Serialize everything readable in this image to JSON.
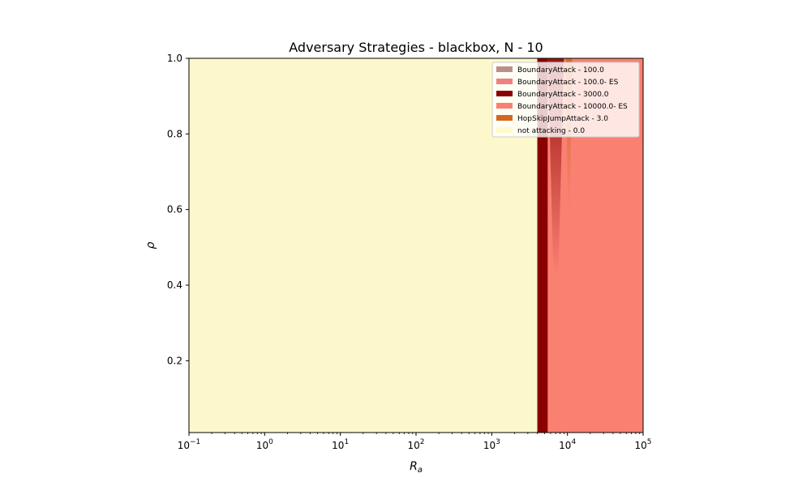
{
  "chart_data": {
    "type": "heatmap",
    "title": "Adversary Strategies - blackbox, N - 10",
    "xlabel": "R",
    "xlabel_sub": "a",
    "ylabel": "ρ",
    "xscale": "log",
    "xlim": [
      0.1,
      100000
    ],
    "ylim": [
      0.01,
      1.0
    ],
    "x_ticks": [
      {
        "value": 0.1,
        "base": "10",
        "exp": "−1"
      },
      {
        "value": 1,
        "base": "10",
        "exp": "0"
      },
      {
        "value": 10,
        "base": "10",
        "exp": "1"
      },
      {
        "value": 100,
        "base": "10",
        "exp": "2"
      },
      {
        "value": 1000,
        "base": "10",
        "exp": "3"
      },
      {
        "value": 10000,
        "base": "10",
        "exp": "4"
      },
      {
        "value": 100000,
        "base": "10",
        "exp": "5"
      }
    ],
    "y_ticks": [
      {
        "value": 0.2,
        "label": "0.2"
      },
      {
        "value": 0.4,
        "label": "0.4"
      },
      {
        "value": 0.6,
        "label": "0.6"
      },
      {
        "value": 0.8,
        "label": "0.8"
      },
      {
        "value": 1.0,
        "label": "1.0"
      }
    ],
    "legend_position": "top-right",
    "legend": [
      {
        "label": "BoundaryAttack - 100.0",
        "color": "#bc8f8f"
      },
      {
        "label": "BoundaryAttack - 100.0- ES",
        "color": "#f08080"
      },
      {
        "label": "BoundaryAttack - 3000.0",
        "color": "#8b0000"
      },
      {
        "label": "BoundaryAttack - 10000.0- ES",
        "color": "#fa8072"
      },
      {
        "label": "HopSkipJumpAttack - 3.0",
        "color": "#d2691e"
      },
      {
        "label": "not attacking - 0.0",
        "color": "#fffacd"
      }
    ],
    "regions": [
      {
        "strategy": "not attacking - 0.0",
        "x_range": [
          0.1,
          4000
        ],
        "y_range": [
          0.01,
          1.0
        ],
        "color": "#fdf8cc"
      },
      {
        "strategy": "BoundaryAttack - 3000.0",
        "x_range": [
          4000,
          5500
        ],
        "y_range": [
          0.01,
          1.0
        ],
        "color": "#8b0000"
      },
      {
        "strategy": "BoundaryAttack - 10000.0- ES",
        "x_range": [
          5500,
          100000
        ],
        "y_range": [
          0.01,
          1.0
        ],
        "color": "#fa8072"
      },
      {
        "strategy": "BoundaryAttack - 3000.0",
        "x_range": [
          5500,
          9000
        ],
        "y_range": [
          0.43,
          1.0
        ],
        "color": "#a52020",
        "shape": "tapering"
      },
      {
        "strategy": "HopSkipJumpAttack - 3.0",
        "x_range": [
          9500,
          11500
        ],
        "y_range": [
          0.6,
          1.0
        ],
        "color": "#d2691e",
        "shape": "tapering"
      }
    ]
  }
}
